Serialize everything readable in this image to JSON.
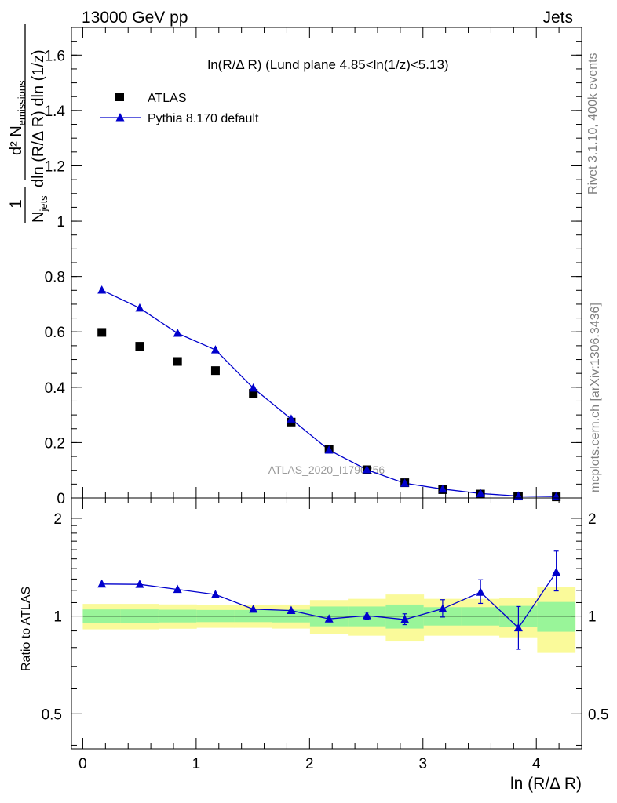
{
  "header": {
    "left": "13000 GeV pp",
    "right": "Jets"
  },
  "side_labels": {
    "rivet": "Rivet 3.1.10,  400k events",
    "mcplots": "mcplots.cern.ch [arXiv:1306.3436]"
  },
  "colors": {
    "data": "#000000",
    "mc": "#0000cc",
    "band_inner": "#99f599",
    "band_outer": "#fafa9a"
  },
  "chart_data": [
    {
      "type": "scatter",
      "title": "ln(R/Δ R) (Lund plane 4.85<ln(1/z)<5.13)",
      "ylabel_parts": [
        "1",
        "N",
        "jets",
        "dln (R/Δ R) dln (1/z)",
        "d² N",
        "emissions"
      ],
      "watermark": "ATLAS_2020_I1790256",
      "xlim": [
        -0.1,
        4.4
      ],
      "ylim": [
        0,
        1.7
      ],
      "yticks": [
        0,
        0.2,
        0.4,
        0.6,
        0.8,
        1,
        1.2,
        1.4,
        1.6
      ],
      "ytick_labels": [
        "0",
        "0.2",
        "0.4",
        "0.6",
        "0.8",
        "1",
        "1.2",
        "1.4",
        "1.6"
      ],
      "legend_position": "top-left",
      "x": [
        0.168,
        0.502,
        0.836,
        1.17,
        1.504,
        1.838,
        2.172,
        2.506,
        2.84,
        3.174,
        3.508,
        3.842,
        4.176
      ],
      "series": [
        {
          "name": "ATLAS",
          "marker": "square",
          "values": [
            0.598,
            0.548,
            0.493,
            0.46,
            0.378,
            0.274,
            0.177,
            0.102,
            0.055,
            0.03,
            0.014,
            0.007,
            0.004
          ]
        },
        {
          "name": "Pythia 8.170 default",
          "marker": "triangle",
          "values": [
            0.751,
            0.686,
            0.595,
            0.535,
            0.397,
            0.285,
            0.173,
            0.102,
            0.053,
            0.032,
            0.016,
            0.007,
            0.005
          ]
        }
      ]
    },
    {
      "type": "scatter",
      "xlabel": "ln (R/Δ R)",
      "ylabel": "Ratio to ATLAS",
      "xlim": [
        -0.1,
        4.4
      ],
      "ylim": [
        0.39,
        2.31
      ],
      "yticks": [
        0.5,
        1,
        2
      ],
      "ytick_labels": [
        "0.5",
        "1",
        "2"
      ],
      "xticks": [
        0,
        1,
        2,
        3,
        4
      ],
      "xtick_labels": [
        "0",
        "1",
        "2",
        "3",
        "4"
      ],
      "bin_edges": [
        0,
        0.334,
        0.668,
        1.002,
        1.336,
        1.67,
        2.004,
        2.338,
        2.672,
        3.006,
        3.34,
        3.674,
        4.008,
        4.342
      ],
      "band_inner": [
        [
          0.954,
          1.048
        ],
        [
          0.954,
          1.048
        ],
        [
          0.956,
          1.046
        ],
        [
          0.958,
          1.044
        ],
        [
          0.958,
          1.044
        ],
        [
          0.956,
          1.046
        ],
        [
          0.93,
          1.07
        ],
        [
          0.93,
          1.07
        ],
        [
          0.915,
          1.085
        ],
        [
          0.935,
          1.065
        ],
        [
          0.935,
          1.065
        ],
        [
          0.925,
          1.075
        ],
        [
          0.895,
          1.105
        ]
      ],
      "band_outer": [
        [
          0.91,
          1.09
        ],
        [
          0.91,
          1.09
        ],
        [
          0.914,
          1.086
        ],
        [
          0.92,
          1.08
        ],
        [
          0.92,
          1.08
        ],
        [
          0.915,
          1.085
        ],
        [
          0.88,
          1.12
        ],
        [
          0.87,
          1.13
        ],
        [
          0.835,
          1.165
        ],
        [
          0.87,
          1.13
        ],
        [
          0.87,
          1.13
        ],
        [
          0.86,
          1.14
        ],
        [
          0.77,
          1.23
        ]
      ],
      "ratio": [
        1.255,
        1.252,
        1.208,
        1.165,
        1.05,
        1.04,
        0.98,
        1.003,
        0.976,
        1.053,
        1.184,
        0.92,
        1.365
      ],
      "ratio_err": [
        [
          0,
          0
        ],
        [
          0,
          0
        ],
        [
          0,
          0
        ],
        [
          0,
          0
        ],
        [
          0,
          0
        ],
        [
          0,
          0
        ],
        [
          0.02,
          0.02
        ],
        [
          0.025,
          0.025
        ],
        [
          0.035,
          0.04
        ],
        [
          0.06,
          0.07
        ],
        [
          0.09,
          0.11
        ],
        [
          0.13,
          0.15
        ],
        [
          0.17,
          0.22
        ]
      ],
      "reference": 1
    }
  ]
}
